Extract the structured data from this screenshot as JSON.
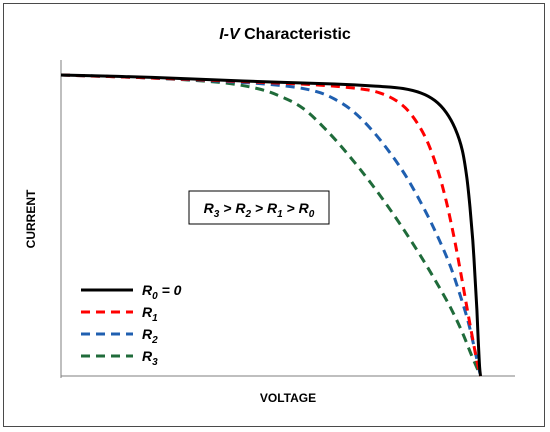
{
  "chart_data": {
    "type": "line",
    "title": "I-V Characteristic",
    "title_italic_part": "I-V",
    "title_rest": " Characteristic",
    "xlabel": "VOLTAGE",
    "ylabel": "CURRENT",
    "xlim": [
      0,
      1
    ],
    "ylim": [
      0,
      1
    ],
    "grid": false,
    "legend_position": "bottom-left",
    "annotation": {
      "text": "R3 > R2 > R1 > R0",
      "parts": [
        {
          "sym": "R",
          "sub": "3"
        },
        {
          "op": " > "
        },
        {
          "sym": "R",
          "sub": "2"
        },
        {
          "op": " > "
        },
        {
          "sym": "R",
          "sub": "1"
        },
        {
          "op": " > "
        },
        {
          "sym": "R",
          "sub": "0"
        }
      ]
    },
    "series": [
      {
        "name": "R0 = 0",
        "sym": "R",
        "sub": "0",
        "suffix": " = 0",
        "color": "#000000",
        "dashed": false,
        "points": [
          [
            0,
            1.0
          ],
          [
            0.2,
            0.992
          ],
          [
            0.4,
            0.98
          ],
          [
            0.6,
            0.97
          ],
          [
            0.7,
            0.962
          ],
          [
            0.75,
            0.955
          ],
          [
            0.79,
            0.94
          ],
          [
            0.82,
            0.915
          ],
          [
            0.845,
            0.875
          ],
          [
            0.865,
            0.82
          ],
          [
            0.88,
            0.75
          ],
          [
            0.89,
            0.66
          ],
          [
            0.897,
            0.56
          ],
          [
            0.903,
            0.45
          ],
          [
            0.908,
            0.33
          ],
          [
            0.912,
            0.22
          ],
          [
            0.915,
            0.12
          ],
          [
            0.918,
            0.03
          ],
          [
            0.92,
            0.0
          ]
        ]
      },
      {
        "name": "R1",
        "sym": "R",
        "sub": "1",
        "suffix": "",
        "color": "#ff0000",
        "dashed": true,
        "points": [
          [
            0,
            1.0
          ],
          [
            0.2,
            0.99
          ],
          [
            0.4,
            0.978
          ],
          [
            0.55,
            0.968
          ],
          [
            0.65,
            0.955
          ],
          [
            0.7,
            0.94
          ],
          [
            0.74,
            0.91
          ],
          [
            0.77,
            0.865
          ],
          [
            0.8,
            0.79
          ],
          [
            0.825,
            0.69
          ],
          [
            0.845,
            0.58
          ],
          [
            0.862,
            0.46
          ],
          [
            0.877,
            0.34
          ],
          [
            0.89,
            0.23
          ],
          [
            0.902,
            0.13
          ],
          [
            0.912,
            0.05
          ],
          [
            0.92,
            0.0
          ]
        ]
      },
      {
        "name": "R2",
        "sym": "R",
        "sub": "2",
        "suffix": "",
        "color": "#1f5fb0",
        "dashed": true,
        "points": [
          [
            0,
            1.0
          ],
          [
            0.2,
            0.99
          ],
          [
            0.4,
            0.975
          ],
          [
            0.5,
            0.962
          ],
          [
            0.56,
            0.945
          ],
          [
            0.6,
            0.92
          ],
          [
            0.64,
            0.88
          ],
          [
            0.68,
            0.82
          ],
          [
            0.72,
            0.745
          ],
          [
            0.76,
            0.655
          ],
          [
            0.8,
            0.545
          ],
          [
            0.83,
            0.45
          ],
          [
            0.855,
            0.36
          ],
          [
            0.875,
            0.27
          ],
          [
            0.893,
            0.18
          ],
          [
            0.907,
            0.09
          ],
          [
            0.92,
            0.0
          ]
        ]
      },
      {
        "name": "R3",
        "sym": "R",
        "sub": "3",
        "suffix": "",
        "color": "#1f6b3a",
        "dashed": true,
        "points": [
          [
            0,
            1.0
          ],
          [
            0.2,
            0.99
          ],
          [
            0.35,
            0.975
          ],
          [
            0.43,
            0.955
          ],
          [
            0.48,
            0.93
          ],
          [
            0.53,
            0.89
          ],
          [
            0.58,
            0.82
          ],
          [
            0.63,
            0.735
          ],
          [
            0.68,
            0.64
          ],
          [
            0.73,
            0.535
          ],
          [
            0.78,
            0.42
          ],
          [
            0.82,
            0.32
          ],
          [
            0.855,
            0.225
          ],
          [
            0.88,
            0.145
          ],
          [
            0.9,
            0.07
          ],
          [
            0.92,
            0.0
          ]
        ]
      }
    ]
  }
}
